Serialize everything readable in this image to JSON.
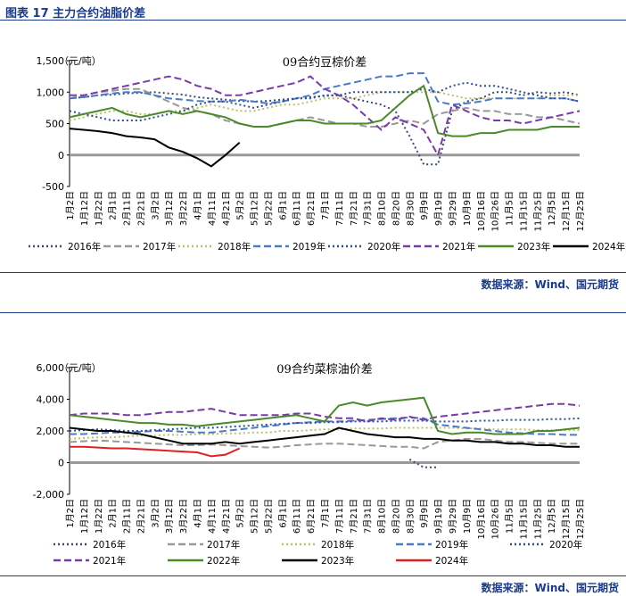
{
  "figure_title": "图表 17 主力合约油脂价差",
  "source_label": "数据来源：Wind、国元期货",
  "chart_data": [
    {
      "type": "line",
      "title": "09合约豆棕价差",
      "ylabel": "（元/吨）",
      "ylim": [
        -500,
        1500
      ],
      "yticks": [
        "1,500",
        "1,000",
        "500",
        "0",
        "-500"
      ],
      "x_labels": [
        "1月2日",
        "1月12日",
        "1月22日",
        "2月1日",
        "2月11日",
        "2月21日",
        "3月2日",
        "3月12日",
        "3月22日",
        "4月1日",
        "4月11日",
        "4月21日",
        "5月2日",
        "5月12日",
        "5月22日",
        "6月1日",
        "6月11日",
        "6月21日",
        "7月1日",
        "7月11日",
        "7月21日",
        "7月31日",
        "8月10日",
        "8月20日",
        "8月30日",
        "9月9日",
        "9月19日",
        "9月29日",
        "10月9日",
        "10月16日",
        "10月26日",
        "11月5日",
        "11月15日",
        "11月25日",
        "12月5日",
        "12月15日",
        "12月25日"
      ],
      "legend": [
        "2016年",
        "2017年",
        "2018年",
        "2019年",
        "2020年",
        "2021年",
        "2023年",
        "2024年"
      ],
      "series": [
        {
          "name": "2016年",
          "color": "#3a4a7a",
          "style": "dotted",
          "values": [
            900,
            920,
            950,
            960,
            980,
            990,
            1000,
            980,
            960,
            920,
            900,
            880,
            860,
            850,
            860,
            880,
            900,
            920,
            940,
            950,
            900,
            850,
            800,
            700,
            300,
            -150,
            -150,
            700,
            850,
            900,
            1000,
            1000,
            950,
            1000,
            980,
            1000,
            950
          ]
        },
        {
          "name": "2017年",
          "color": "#999999",
          "style": "dashed",
          "values": [
            900,
            950,
            1000,
            1020,
            1050,
            1050,
            950,
            850,
            750,
            700,
            650,
            550,
            500,
            450,
            450,
            500,
            550,
            600,
            550,
            500,
            500,
            450,
            450,
            500,
            550,
            500,
            650,
            700,
            750,
            700,
            700,
            650,
            650,
            600,
            600,
            550,
            500
          ]
        },
        {
          "name": "2018年",
          "color": "#bfbf6a",
          "style": "dotted",
          "values": [
            550,
            600,
            650,
            700,
            700,
            650,
            650,
            700,
            700,
            750,
            800,
            750,
            700,
            700,
            750,
            800,
            800,
            850,
            900,
            900,
            900,
            950,
            1000,
            1000,
            1000,
            1000,
            1000,
            950,
            900,
            900,
            900,
            900,
            900,
            900,
            950,
            950,
            950
          ]
        },
        {
          "name": "2019年",
          "color": "#4a7ac8",
          "style": "dashed",
          "values": [
            900,
            920,
            950,
            980,
            1000,
            1000,
            950,
            900,
            880,
            860,
            850,
            850,
            880,
            850,
            820,
            850,
            900,
            950,
            1050,
            1100,
            1150,
            1200,
            1250,
            1250,
            1300,
            1300,
            850,
            800,
            820,
            850,
            900,
            900,
            900,
            900,
            900,
            900,
            850
          ]
        },
        {
          "name": "2020年",
          "color": "#2e4e9e",
          "style": "dotted",
          "values": [
            700,
            650,
            600,
            550,
            550,
            550,
            600,
            650,
            700,
            800,
            850,
            850,
            800,
            750,
            800,
            850,
            900,
            900,
            950,
            950,
            1000,
            1000,
            1000,
            1000,
            1000,
            1050,
            1000,
            1100,
            1150,
            1100,
            1100,
            1050,
            1000,
            950,
            900,
            900,
            850
          ]
        },
        {
          "name": "2021年",
          "color": "#7a3aa8",
          "style": "dashed",
          "values": [
            950,
            950,
            1000,
            1050,
            1100,
            1150,
            1200,
            1250,
            1200,
            1100,
            1050,
            950,
            950,
            1000,
            1050,
            1100,
            1150,
            1250,
            1050,
            950,
            800,
            600,
            400,
            600,
            500,
            400,
            0,
            800,
            700,
            600,
            550,
            550,
            500,
            550,
            600,
            650,
            700
          ]
        },
        {
          "name": "2023年",
          "color": "#4a8a2a",
          "style": "solid",
          "values": [
            600,
            650,
            700,
            750,
            650,
            600,
            650,
            700,
            650,
            700,
            650,
            600,
            500,
            450,
            450,
            500,
            550,
            550,
            500,
            500,
            500,
            500,
            550,
            750,
            950,
            1100,
            350,
            300,
            300,
            350,
            350,
            400,
            400,
            400,
            450,
            450,
            450
          ]
        },
        {
          "name": "2024年",
          "color": "#000000",
          "style": "solid",
          "values": [
            420,
            400,
            380,
            350,
            300,
            280,
            250,
            120,
            50,
            -50,
            -180,
            0,
            200
          ]
        }
      ]
    },
    {
      "type": "line",
      "title": "09合约菜棕油价差",
      "ylabel": "（元/吨）",
      "ylim": [
        -2000,
        6000
      ],
      "yticks": [
        "6,000",
        "4,000",
        "2,000",
        "0",
        "-2,000"
      ],
      "x_labels": [
        "1月2日",
        "1月12日",
        "1月22日",
        "2月1日",
        "2月11日",
        "2月21日",
        "3月2日",
        "3月12日",
        "3月22日",
        "4月1日",
        "4月11日",
        "4月21日",
        "5月2日",
        "5月12日",
        "5月22日",
        "6月1日",
        "6月11日",
        "6月21日",
        "7月1日",
        "7月11日",
        "7月21日",
        "7月31日",
        "8月10日",
        "8月20日",
        "8月30日",
        "9月9日",
        "9月19日",
        "9月29日",
        "10月9日",
        "10月16日",
        "10月26日",
        "11月5日",
        "11月15日",
        "11月25日",
        "12月5日",
        "12月15日",
        "12月25日"
      ],
      "legend": [
        "2016年",
        "2017年",
        "2018年",
        "2019年",
        "2020年",
        "2021年",
        "2022年",
        "2023年",
        "2024年"
      ],
      "series": [
        {
          "name": "2016年",
          "color": "#3a4a7a",
          "style": "dotted",
          "values": [
            null,
            null,
            null,
            null,
            null,
            null,
            null,
            null,
            null,
            null,
            null,
            null,
            null,
            null,
            null,
            null,
            null,
            null,
            null,
            null,
            null,
            null,
            null,
            null,
            200,
            -300,
            -300,
            null,
            null,
            null,
            null,
            null,
            null,
            null,
            null,
            null,
            null
          ]
        },
        {
          "name": "2017年",
          "color": "#999999",
          "style": "dashed",
          "values": [
            1300,
            1350,
            1400,
            1350,
            1300,
            1250,
            1200,
            1150,
            1100,
            1100,
            1150,
            1100,
            1050,
            1000,
            950,
            1000,
            1100,
            1150,
            1200,
            1200,
            1150,
            1100,
            1050,
            1000,
            1000,
            900,
            1300,
            1400,
            1500,
            1500,
            1400,
            1300,
            1300,
            1250,
            1200,
            1200,
            1200
          ]
        },
        {
          "name": "2018年",
          "color": "#bfbf6a",
          "style": "dotted",
          "values": [
            1500,
            1550,
            1600,
            1600,
            1650,
            1700,
            1700,
            1750,
            1750,
            1800,
            1800,
            1850,
            1850,
            1900,
            1900,
            2000,
            2000,
            2050,
            2100,
            2100,
            2150,
            2150,
            2150,
            2200,
            2200,
            2200,
            2200,
            2200,
            2150,
            2150,
            2100,
            2100,
            2100,
            2050,
            2050,
            2050,
            2050
          ]
        },
        {
          "name": "2019年",
          "color": "#4a7ac8",
          "style": "dashed",
          "values": [
            1800,
            1800,
            1850,
            1900,
            1900,
            1950,
            2000,
            2000,
            1950,
            1900,
            1900,
            2000,
            2100,
            2200,
            2300,
            2400,
            2500,
            2550,
            2600,
            2600,
            2650,
            2700,
            2750,
            2800,
            2850,
            2800,
            2400,
            2300,
            2200,
            2100,
            2000,
            1900,
            1850,
            1800,
            1800,
            1750,
            1750
          ]
        },
        {
          "name": "2020年",
          "color": "#2e4e9e",
          "style": "dotted",
          "values": [
            2000,
            2050,
            2100,
            2050,
            2000,
            2000,
            2050,
            2100,
            2150,
            2200,
            2200,
            2250,
            2300,
            2350,
            2400,
            2450,
            2500,
            2500,
            2550,
            2550,
            2600,
            2600,
            2600,
            2650,
            2650,
            2650,
            2600,
            2600,
            2600,
            2650,
            2650,
            2700,
            2700,
            2700,
            2750,
            2750,
            2800
          ]
        },
        {
          "name": "2021年",
          "color": "#7a3aa8",
          "style": "dashed",
          "values": [
            3000,
            3100,
            3100,
            3100,
            3000,
            3000,
            3100,
            3200,
            3200,
            3300,
            3400,
            3200,
            3000,
            3000,
            3000,
            3000,
            3100,
            3100,
            2900,
            2800,
            2800,
            2600,
            2800,
            2700,
            2900,
            2700,
            2900,
            3000,
            3100,
            3200,
            3300,
            3400,
            3500,
            3600,
            3700,
            3700,
            3600
          ]
        },
        {
          "name": "2022年",
          "color": "#4a8a2a",
          "style": "solid",
          "values": [
            3000,
            2900,
            2800,
            2700,
            2600,
            2500,
            2500,
            2400,
            2400,
            2300,
            2400,
            2500,
            2600,
            2700,
            2800,
            2900,
            3000,
            2800,
            2600,
            3600,
            3800,
            3600,
            3800,
            3900,
            4000,
            4100,
            2000,
            1800,
            1900,
            1900,
            1800,
            1800,
            1800,
            2000,
            2000,
            2100,
            2200
          ]
        },
        {
          "name": "2023年",
          "color": "#000000",
          "style": "solid",
          "values": [
            2200,
            2100,
            2000,
            2000,
            1900,
            1800,
            1600,
            1400,
            1200,
            1200,
            1200,
            1300,
            1200,
            1300,
            1400,
            1500,
            1600,
            1700,
            1800,
            2200,
            2000,
            1800,
            1700,
            1600,
            1600,
            1500,
            1500,
            1400,
            1400,
            1300,
            1300,
            1200,
            1200,
            1100,
            1100,
            1000,
            1000
          ]
        },
        {
          "name": "2024年",
          "color": "#e02020",
          "style": "solid",
          "values": [
            1000,
            1000,
            950,
            900,
            900,
            850,
            800,
            750,
            700,
            650,
            400,
            500,
            900
          ]
        }
      ]
    }
  ]
}
